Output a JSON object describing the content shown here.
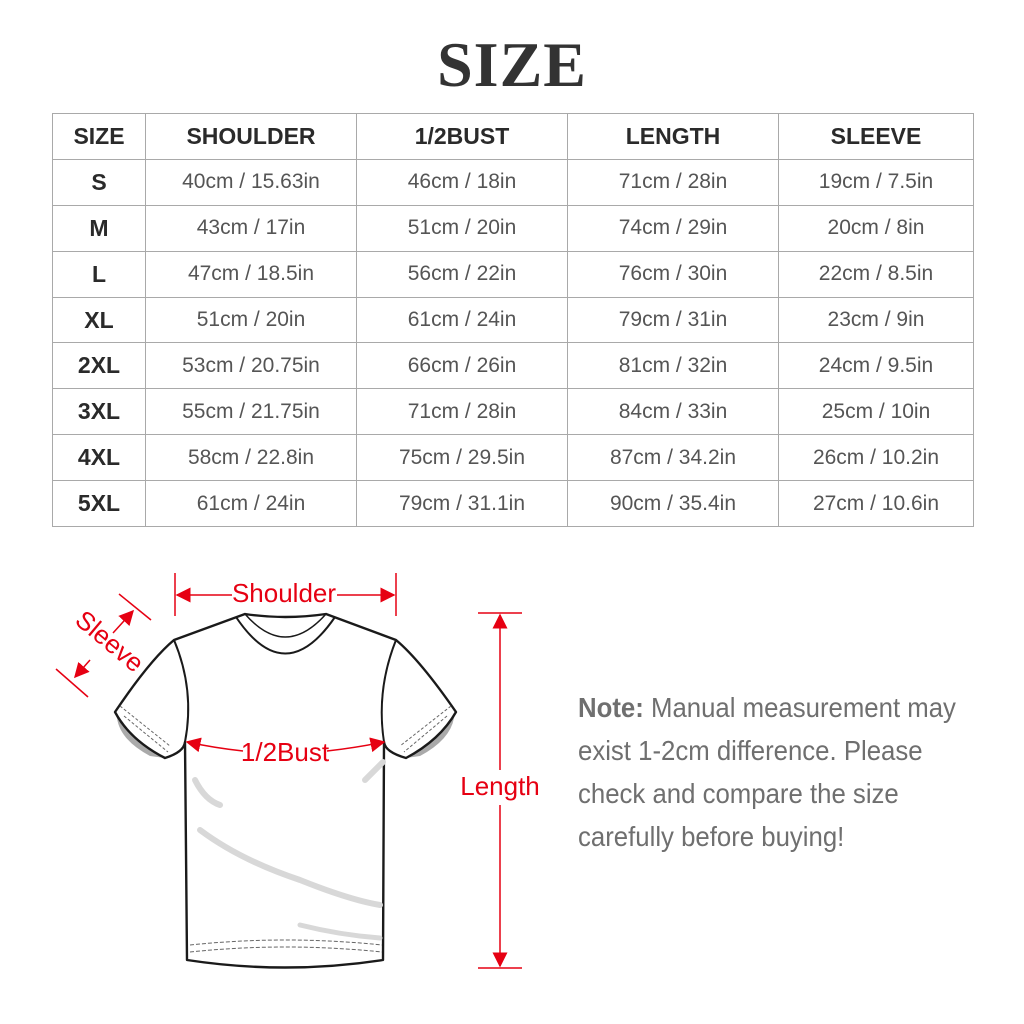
{
  "title": "SIZE",
  "table": {
    "headers": [
      "SIZE",
      "SHOULDER",
      "1/2BUST",
      "LENGTH",
      "SLEEVE"
    ],
    "rows": [
      [
        "S",
        "40cm / 15.63in",
        "46cm / 18in",
        "71cm / 28in",
        "19cm / 7.5in"
      ],
      [
        "M",
        "43cm / 17in",
        "51cm / 20in",
        "74cm / 29in",
        "20cm / 8in"
      ],
      [
        "L",
        "47cm / 18.5in",
        "56cm / 22in",
        "76cm / 30in",
        "22cm / 8.5in"
      ],
      [
        "XL",
        "51cm / 20in",
        "61cm / 24in",
        "79cm / 31in",
        "23cm / 9in"
      ],
      [
        "2XL",
        "53cm / 20.75in",
        "66cm / 26in",
        "81cm / 32in",
        "24cm / 9.5in"
      ],
      [
        "3XL",
        "55cm / 21.75in",
        "71cm / 28in",
        "84cm / 33in",
        "25cm / 10in"
      ],
      [
        "4XL",
        "58cm / 22.8in",
        "75cm / 29.5in",
        "87cm / 34.2in",
        "26cm / 10.2in"
      ],
      [
        "5XL",
        "61cm / 24in",
        "79cm / 31.1in",
        "90cm / 35.4in",
        "27cm / 10.6in"
      ]
    ]
  },
  "diagram": {
    "shoulder_label": "Shoulder",
    "sleeve_label": "Sleeve",
    "bust_label": "1/2Bust",
    "length_label": "Length",
    "accent_color": "#e60012"
  },
  "note": {
    "label": "Note:",
    "text": " Manual measurement may exist 1-2cm difference. Please check and compare the size carefully before buying!"
  }
}
